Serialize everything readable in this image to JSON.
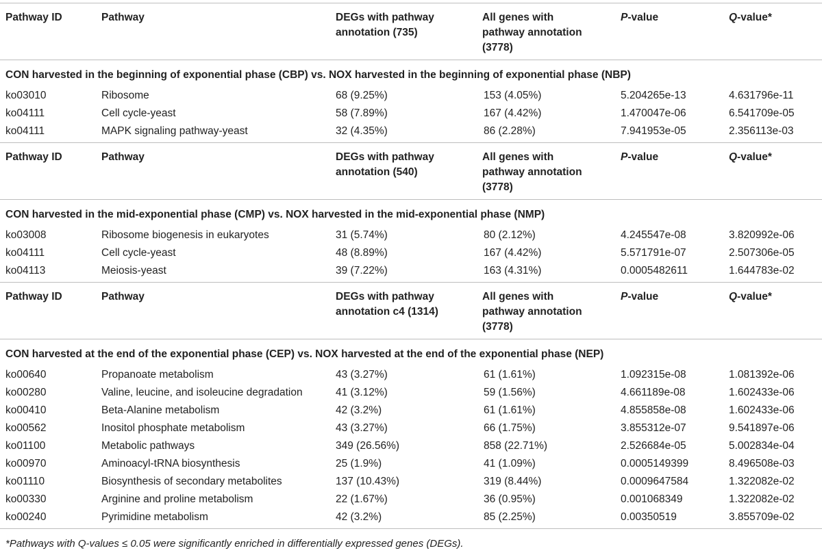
{
  "headers": [
    {
      "col1": "Pathway ID",
      "col2": "Pathway",
      "col3_line1": "DEGs with pathway",
      "col3_line2": "annotation (735)",
      "col4_line1": "All genes with",
      "col4_line2": "pathway annotation",
      "col4_line3": "(3778)",
      "col5_prefix": "P",
      "col5_suffix": "-value",
      "col6_prefix": "Q",
      "col6_suffix": "-value*"
    },
    {
      "col1": "Pathway ID",
      "col2": "Pathway",
      "col3_line1": "DEGs with pathway",
      "col3_line2": "annotation (540)",
      "col4_line1": "All genes with",
      "col4_line2": "pathway annotation",
      "col4_line3": "(3778)",
      "col5_prefix": "P",
      "col5_suffix": "-value",
      "col6_prefix": "Q",
      "col6_suffix": "-value*"
    },
    {
      "col1": "Pathway ID",
      "col2": "Pathway",
      "col3_line1": "DEGs with pathway",
      "col3_line2": "annotation c4 (1314)",
      "col4_line1": "All genes with",
      "col4_line2": "pathway annotation",
      "col4_line3": "(3778)",
      "col5_prefix": "P",
      "col5_suffix": "-value",
      "col6_prefix": "Q",
      "col6_suffix": "-value*"
    }
  ],
  "sections": [
    {
      "title": "CON harvested in the beginning of exponential phase (CBP) vs. NOX harvested in the beginning of exponential phase (NBP)",
      "rows": [
        {
          "id": "ko03010",
          "pathway": "Ribosome",
          "degs": "68 (9.25%)",
          "all": "153 (4.05%)",
          "p": "5.204265e-13",
          "q": "4.631796e-11"
        },
        {
          "id": "ko04111",
          "pathway": "Cell cycle-yeast",
          "degs": "58 (7.89%)",
          "all": "167 (4.42%)",
          "p": "1.470047e-06",
          "q": "6.541709e-05"
        },
        {
          "id": "ko04111",
          "pathway": "MAPK signaling pathway-yeast",
          "degs": "32 (4.35%)",
          "all": "86 (2.28%)",
          "p": "7.941953e-05",
          "q": "2.356113e-03"
        }
      ]
    },
    {
      "title": "CON harvested in the mid-exponential phase (CMP) vs. NOX harvested in the mid-exponential phase (NMP)",
      "rows": [
        {
          "id": "ko03008",
          "pathway": "Ribosome biogenesis in eukaryotes",
          "degs": "31 (5.74%)",
          "all": "80 (2.12%)",
          "p": "4.245547e-08",
          "q": "3.820992e-06"
        },
        {
          "id": "ko04111",
          "pathway": "Cell cycle-yeast",
          "degs": "48 (8.89%)",
          "all": "167 (4.42%)",
          "p": "5.571791e-07",
          "q": "2.507306e-05"
        },
        {
          "id": "ko04113",
          "pathway": "Meiosis-yeast",
          "degs": "39 (7.22%)",
          "all": "163 (4.31%)",
          "p": "0.0005482611",
          "q": "1.644783e-02"
        }
      ]
    },
    {
      "title": "CON harvested at the end of the exponential phase (CEP) vs. NOX harvested at the end of the exponential phase (NEP)",
      "rows": [
        {
          "id": "ko00640",
          "pathway": "Propanoate metabolism",
          "degs": "43 (3.27%)",
          "all": "61 (1.61%)",
          "p": "1.092315e-08",
          "q": "1.081392e-06"
        },
        {
          "id": "ko00280",
          "pathway": "Valine, leucine, and isoleucine degradation",
          "degs": "41 (3.12%)",
          "all": "59 (1.56%)",
          "p": "4.661189e-08",
          "q": "1.602433e-06"
        },
        {
          "id": "ko00410",
          "pathway": "Beta-Alanine metabolism",
          "degs": "42 (3.2%)",
          "all": "61 (1.61%)",
          "p": "4.855858e-08",
          "q": "1.602433e-06"
        },
        {
          "id": "ko00562",
          "pathway": "Inositol phosphate metabolism",
          "degs": "43 (3.27%)",
          "all": "66 (1.75%)",
          "p": "3.855312e-07",
          "q": "9.541897e-06"
        },
        {
          "id": "ko01100",
          "pathway": "Metabolic pathways",
          "degs": "349 (26.56%)",
          "all": "858 (22.71%)",
          "p": "2.526684e-05",
          "q": "5.002834e-04"
        },
        {
          "id": "ko00970",
          "pathway": "Aminoacyl-tRNA biosynthesis",
          "degs": "25 (1.9%)",
          "all": "41 (1.09%)",
          "p": "0.0005149399",
          "q": "8.496508e-03"
        },
        {
          "id": "ko01110",
          "pathway": "Biosynthesis of secondary metabolites",
          "degs": "137 (10.43%)",
          "all": "319 (8.44%)",
          "p": "0.0009647584",
          "q": "1.322082e-02"
        },
        {
          "id": "ko00330",
          "pathway": "Arginine and proline metabolism",
          "degs": "22 (1.67%)",
          "all": "36 (0.95%)",
          "p": "0.001068349",
          "q": "1.322082e-02"
        },
        {
          "id": "ko00240",
          "pathway": "Pyrimidine metabolism",
          "degs": "42 (3.2%)",
          "all": "85 (2.25%)",
          "p": "0.00350519",
          "q": "3.855709e-02"
        }
      ]
    }
  ],
  "footnote": "*Pathways with Q-values ≤ 0.05 were significantly enriched in differentially expressed genes (DEGs)."
}
